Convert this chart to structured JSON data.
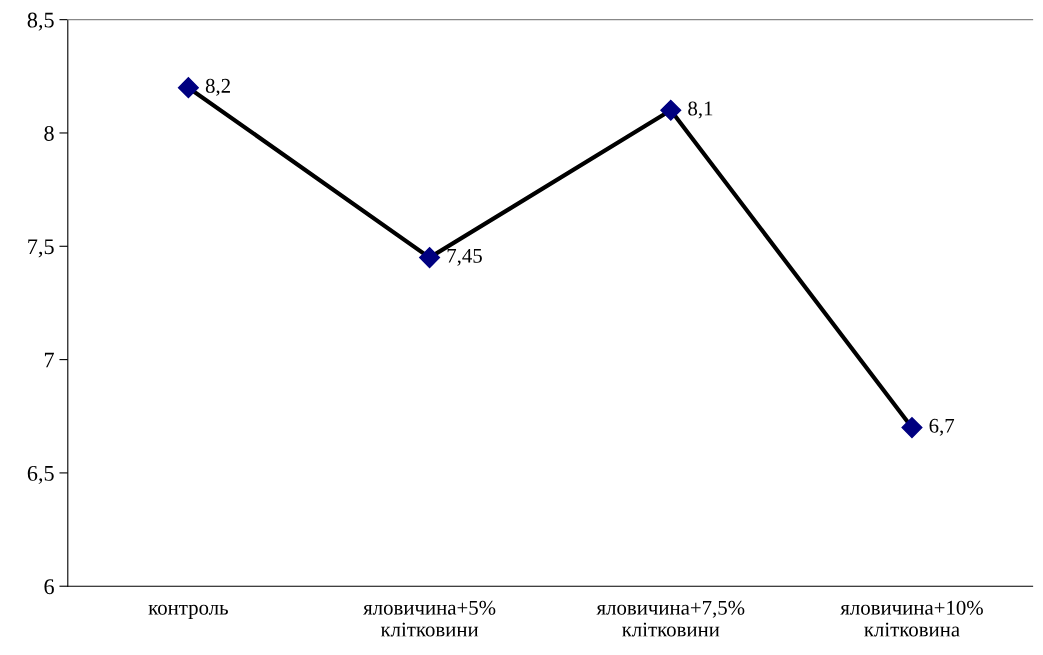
{
  "chart_data": {
    "type": "line",
    "categories": [
      "контроль",
      "яловичина+5%\nклітковини",
      "яловичина+7,5%\nклітковини",
      "яловичина+10%\nклітковина"
    ],
    "values": [
      8.2,
      7.45,
      8.1,
      6.7
    ],
    "value_labels": [
      "8,2",
      "7,45",
      "8,1",
      "6,7"
    ],
    "color": "#000080",
    "marker": "diamond",
    "ylim": [
      6,
      8.5
    ],
    "yticks": [
      6,
      {
        "value": 6.5,
        "label": "6,5"
      },
      7,
      {
        "value": 7.5,
        "label": "7,5"
      },
      8,
      {
        "value": 8.5,
        "label": "8,5"
      }
    ],
    "grid": false,
    "legend": false
  }
}
